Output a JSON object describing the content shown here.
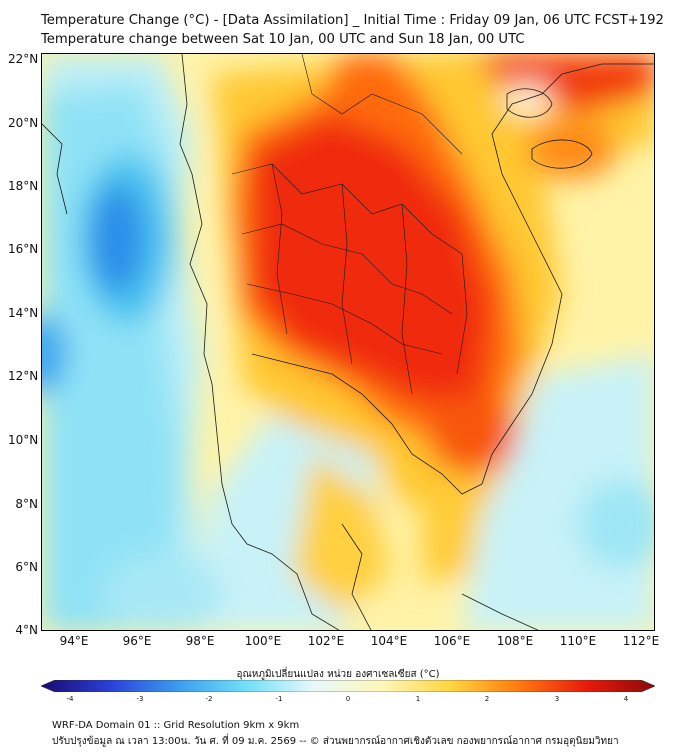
{
  "header": {
    "title_line1": "Temperature Change (°C) - [Data Assimilation] _ Initial Time : Friday 09 Jan, 06 UTC FCST+192",
    "title_line2": "Temperature change between Sat 10 Jan, 00 UTC and Sun 18 Jan, 00 UTC"
  },
  "map": {
    "lat_labels": [
      "22°N",
      "20°N",
      "18°N",
      "16°N",
      "14°N",
      "12°N",
      "10°N",
      "8°N",
      "6°N",
      "4°N"
    ],
    "lon_labels": [
      "94°E",
      "96°E",
      "98°E",
      "100°E",
      "102°E",
      "104°E",
      "106°E",
      "108°E",
      "110°E",
      "112°E"
    ],
    "lat_values": [
      22,
      20,
      18,
      16,
      14,
      12,
      10,
      8,
      6,
      4
    ],
    "lon_values": [
      94,
      96,
      98,
      100,
      102,
      104,
      106,
      108,
      110,
      112
    ],
    "lon_range": [
      93,
      112.3
    ],
    "lat_range": [
      4,
      22.2
    ]
  },
  "colorbar": {
    "label": "อุณหภูมิเปลี่ยนแปลง หน่วย องศาเซลเซียส (°C)",
    "ticks": [
      "-4",
      "-3",
      "-2",
      "-1",
      "0",
      "1",
      "2",
      "3",
      "4"
    ],
    "min": -4,
    "max": 4,
    "colors": [
      "#1a0a6e",
      "#2a3fd8",
      "#3a9cf0",
      "#6fe0f8",
      "#e8f8fc",
      "#fff7b8",
      "#ffd640",
      "#ff7a10",
      "#e81a0a",
      "#8a0a0a"
    ]
  },
  "footer": {
    "line1": "WRF-DA Domain 01 :: Grid Resolution 9km x 9km",
    "line2": "ปรับปรุงข้อมูล ณ เวลา 13:00น. วัน ศ. ที่ 09 ม.ค. 2569 -- © ส่วนพยากรณ์อากาศเชิงตัวเลข กองพยากรณ์อากาศ กรมอุตุนิยมวิทยา"
  }
}
